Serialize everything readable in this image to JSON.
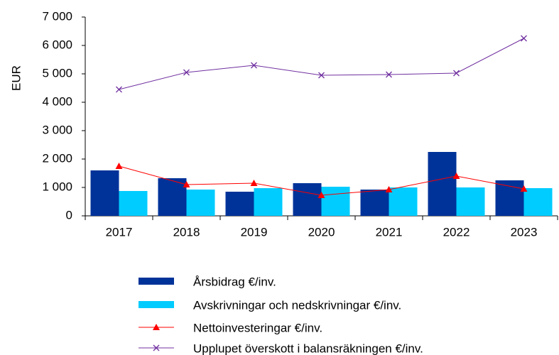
{
  "chart_data": {
    "type": "bar",
    "ylabel": "EUR",
    "categories": [
      "2017",
      "2018",
      "2019",
      "2020",
      "2021",
      "2022",
      "2023"
    ],
    "series": [
      {
        "name": "Årsbidrag €/inv.",
        "color": "#003399",
        "kind": "bar",
        "values": [
          1600,
          1325,
          850,
          1150,
          925,
          2250,
          1250
        ]
      },
      {
        "name": "Avskrivningar och nedskrivningar €/inv.",
        "color": "#00ccff",
        "kind": "bar",
        "values": [
          875,
          925,
          975,
          1025,
          1000,
          1000,
          975
        ]
      },
      {
        "name": "Nettoinvesteringar €/inv.",
        "color": "#ff0000",
        "kind": "line",
        "marker": "triangle",
        "values": [
          1750,
          1100,
          1150,
          725,
          925,
          1400,
          950
        ]
      },
      {
        "name": "Upplupet överskott i balansräkningen €/inv.",
        "color": "#7030a0",
        "kind": "line",
        "marker": "x",
        "values": [
          4450,
          5050,
          5300,
          4950,
          4975,
          5025,
          6250
        ]
      }
    ],
    "ylim": [
      0,
      7000
    ],
    "yticks": [
      0,
      {
        "value": 1000,
        "label": "1 000"
      },
      {
        "value": 2000,
        "label": "2 000"
      },
      {
        "value": 3000,
        "label": "3 000"
      },
      {
        "value": 4000,
        "label": "4 000"
      },
      {
        "value": 5000,
        "label": "5 000"
      },
      {
        "value": 6000,
        "label": "6 000"
      },
      {
        "value": 7000,
        "label": "7 000"
      }
    ],
    "legend": "bottom"
  }
}
